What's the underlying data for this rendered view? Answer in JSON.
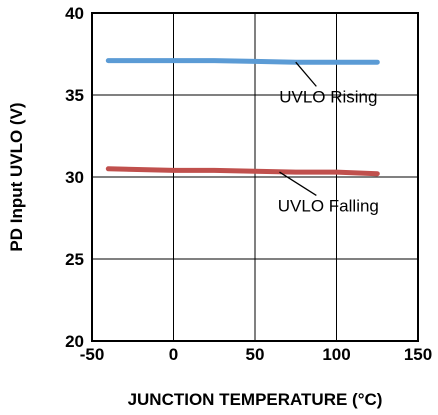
{
  "chart_data": {
    "type": "line",
    "xlabel": "JUNCTION TEMPERATURE (°C)",
    "ylabel": "PD Input UVLO (V)",
    "xlim": [
      -50,
      150
    ],
    "ylim": [
      20,
      40
    ],
    "xticks": [
      "-50",
      "0",
      "50",
      "100",
      "150"
    ],
    "yticks": [
      "20",
      "25",
      "30",
      "35",
      "40"
    ],
    "grid": true,
    "series": [
      {
        "name": "UVLO Rising",
        "color": "#5b9bd5",
        "x": [
          -40,
          0,
          25,
          50,
          75,
          100,
          125
        ],
        "y": [
          37.1,
          37.1,
          37.1,
          37.05,
          37.0,
          37.0,
          37.0
        ]
      },
      {
        "name": "UVLO Falling",
        "color": "#c0504d",
        "x": [
          -40,
          0,
          25,
          50,
          75,
          100,
          125
        ],
        "y": [
          30.5,
          30.4,
          30.4,
          30.35,
          30.3,
          30.3,
          30.2
        ]
      }
    ],
    "annotations": [
      {
        "text": "UVLO Rising",
        "series": "UVLO Rising",
        "target_x": 75,
        "target_y": 37.0,
        "label_x": 95,
        "label_y": 34.55
      },
      {
        "text": "UVLO Falling",
        "series": "UVLO Falling",
        "target_x": 65,
        "target_y": 30.3,
        "label_x": 95,
        "label_y": 27.9
      }
    ]
  }
}
